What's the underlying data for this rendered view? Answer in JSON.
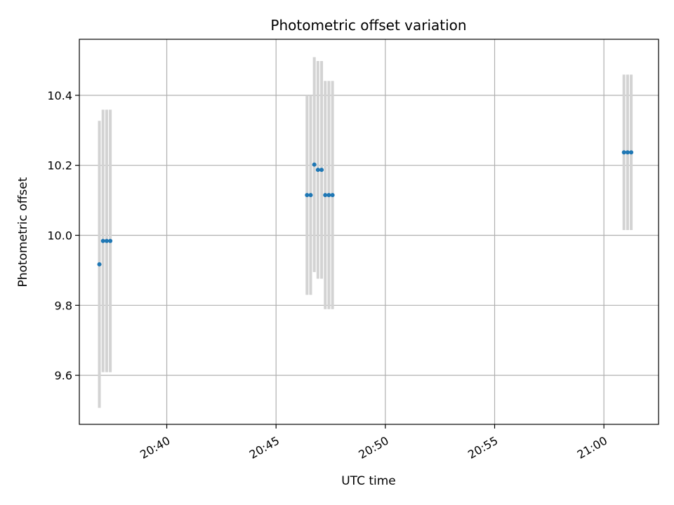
{
  "chart_data": {
    "type": "scatter",
    "title": "Photometric offset variation",
    "xlabel": "UTC time",
    "ylabel": "Photometric offset",
    "x_ticks": [
      "20:40",
      "20:45",
      "20:50",
      "20:55",
      "21:00"
    ],
    "y_ticks": [
      "9.6",
      "9.8",
      "10.0",
      "10.2",
      "10.4"
    ],
    "xlim": [
      "20:36:00",
      "21:02:30"
    ],
    "ylim": [
      9.46,
      10.56
    ],
    "grid": true,
    "colors": {
      "points": "#1f77b4",
      "errorbars": "#d3d3d3",
      "grid": "#b0b0b0"
    },
    "points": [
      {
        "time": "20:36:55",
        "y": 9.917,
        "err": 0.41
      },
      {
        "time": "20:37:05",
        "y": 9.984,
        "err": 0.375
      },
      {
        "time": "20:37:15",
        "y": 9.984,
        "err": 0.375
      },
      {
        "time": "20:37:25",
        "y": 9.984,
        "err": 0.375
      },
      {
        "time": "20:46:25",
        "y": 10.115,
        "err": 0.285
      },
      {
        "time": "20:46:35",
        "y": 10.115,
        "err": 0.285
      },
      {
        "time": "20:46:45",
        "y": 10.202,
        "err": 0.307
      },
      {
        "time": "20:46:55",
        "y": 10.187,
        "err": 0.311
      },
      {
        "time": "20:47:05",
        "y": 10.187,
        "err": 0.311
      },
      {
        "time": "20:47:15",
        "y": 10.115,
        "err": 0.326
      },
      {
        "time": "20:47:25",
        "y": 10.115,
        "err": 0.326
      },
      {
        "time": "20:47:35",
        "y": 10.115,
        "err": 0.326
      },
      {
        "time": "21:00:55",
        "y": 10.237,
        "err": 0.222
      },
      {
        "time": "21:01:05",
        "y": 10.237,
        "err": 0.222
      },
      {
        "time": "21:01:15",
        "y": 10.237,
        "err": 0.222
      }
    ]
  }
}
